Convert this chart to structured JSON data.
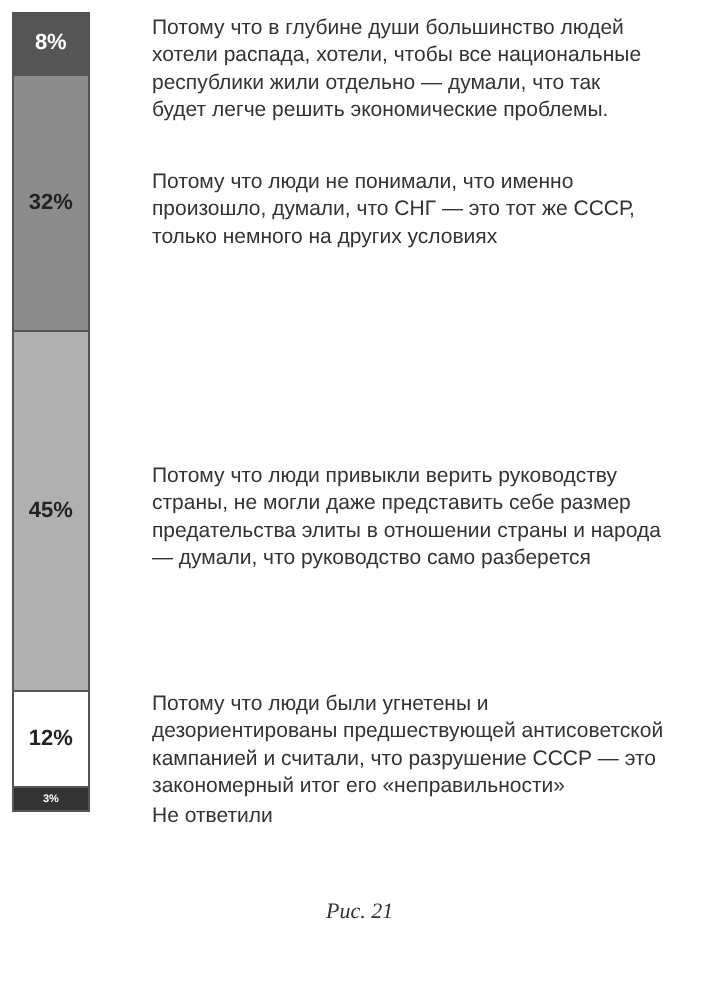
{
  "chart_data": {
    "type": "bar",
    "stacked": true,
    "categories": [
      null
    ],
    "legend": false,
    "tick_labels": false,
    "series": [
      {
        "name": "Не ответили",
        "color": "#333333",
        "values": [
          3
        ],
        "value_labels": [
          "3%"
        ]
      },
      {
        "name": "Потому что люди были угнетены и дезориентированы предшествующей антисоветской кампанией и считали, что разрушение СССР — это закономерный итог его «неправильности»",
        "color": "#ffffff",
        "values": [
          12
        ],
        "value_labels": [
          "12%"
        ]
      },
      {
        "name": "Потому что люди привыкли верить руководству страны, не могли даже представить себе размер предательства элиты в отношении страны и народа — думали, что руководство само разберется",
        "color": "#b0b0b0",
        "values": [
          45
        ],
        "value_labels": [
          "45%"
        ]
      },
      {
        "name": "Потому что люди не понимали, что именно произошло, думали, что СНГ — это тот же СССР, только немного на других условиях",
        "color": "#8c8c8c",
        "values": [
          32
        ],
        "value_labels": [
          "32%"
        ]
      },
      {
        "name": "Потому что в глубине души большинство людей хотели распада, хотели, чтобы все национальные республики жили отдельно — думали, что так будет легче решить экономические проблемы.",
        "color": "#555555",
        "values": [
          8
        ],
        "value_labels": [
          "8%"
        ]
      }
    ],
    "annotations": [
      "Рис. 21"
    ]
  }
}
